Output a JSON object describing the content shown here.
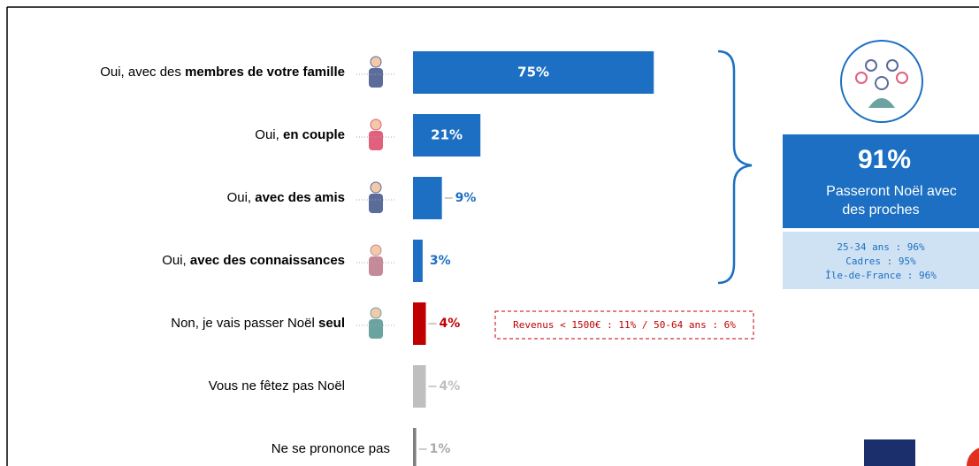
{
  "chart_data": {
    "type": "hbar",
    "categories": [
      [
        {
          "text": "Oui, avec des ",
          "bold": false
        },
        {
          "text": "membres de votre famille",
          "bold": true
        }
      ],
      [
        {
          "text": "Oui, ",
          "bold": false
        },
        {
          "text": "en couple",
          "bold": true
        }
      ],
      [
        {
          "text": "Oui, ",
          "bold": false
        },
        {
          "text": "avec des amis",
          "bold": true
        }
      ],
      [
        {
          "text": "Oui, ",
          "bold": false
        },
        {
          "text": "avec des connaissances",
          "bold": true
        }
      ],
      [
        {
          "text": "Non, je vais passer Noël ",
          "bold": false
        },
        {
          "text": "seul",
          "bold": true
        }
      ],
      [
        {
          "text": "Vous ne fêtez pas Noël",
          "bold": false
        }
      ],
      [
        {
          "text": "Ne se prononce pas",
          "bold": false
        }
      ]
    ],
    "values": [
      75,
      21,
      9,
      3,
      4,
      4,
      1
    ],
    "value_labels": [
      "75%",
      "21%",
      "9%",
      "3%",
      "4%",
      "4%",
      "1%"
    ],
    "colors": [
      "#1c6fc2",
      "#1c6fc2",
      "#1c6fc2",
      "#1c6fc2",
      "#c00000",
      "#bfbfbf",
      "#7f7f7f"
    ],
    "label_colors": [
      "#ffffff",
      "#ffffff",
      "#1c6fc2",
      "#1c6fc2",
      "#c00000",
      "#bfbfbf",
      "#aaaaaa"
    ],
    "summary_value": "91%",
    "summary_text": [
      "Passeront Noël avec",
      "des proches"
    ],
    "summary_details": [
      "25-34 ans : 96%",
      "Cadres : 95%",
      "Île-de-France : 96%"
    ],
    "note": "Revenus < 1500€ : 11% / 50-64 ans : 6%"
  }
}
